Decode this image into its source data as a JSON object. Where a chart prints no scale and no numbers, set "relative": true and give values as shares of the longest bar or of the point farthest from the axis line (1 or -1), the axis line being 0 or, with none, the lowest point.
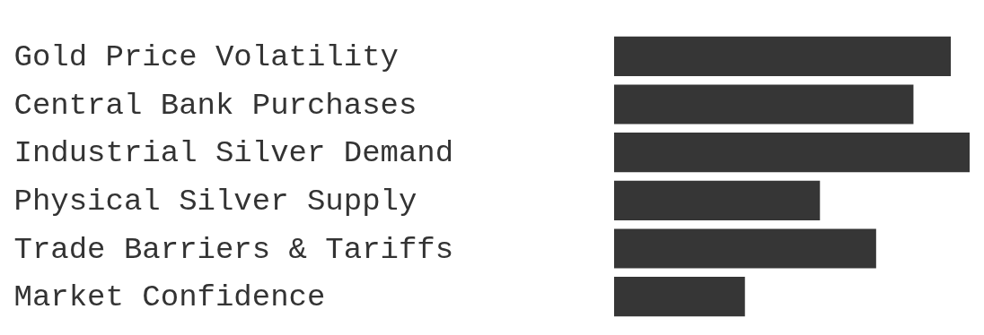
{
  "chart_data": {
    "type": "bar",
    "orientation": "horizontal",
    "relative": true,
    "categories": [
      "Gold Price Volatility",
      "Central Bank Purchases",
      "Industrial Silver Demand",
      "Physical Silver Supply",
      "Trade Barriers & Tariffs",
      "Market Confidence"
    ],
    "values": [
      0.947,
      0.842,
      1,
      0.579,
      0.737,
      0.368
    ],
    "color": "#363636"
  }
}
